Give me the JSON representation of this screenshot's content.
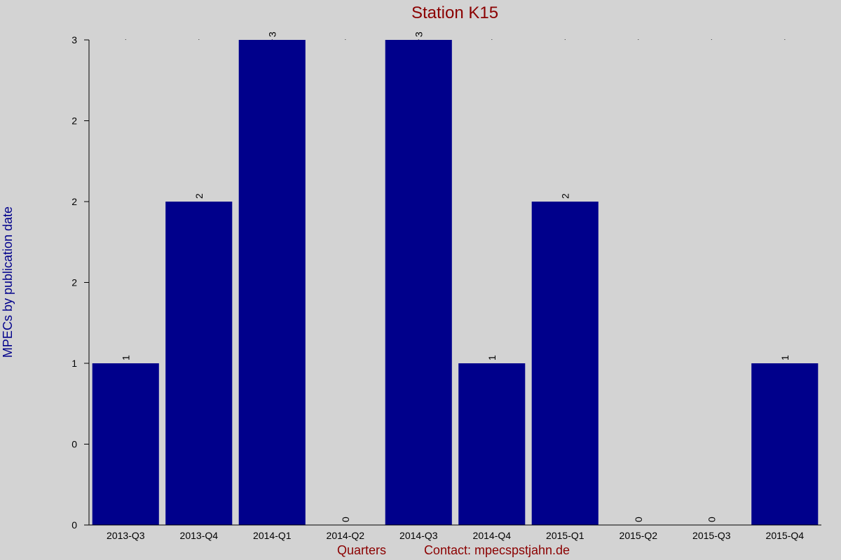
{
  "chart_data": {
    "type": "bar",
    "title": "Station K15",
    "xlabel": "Quarters",
    "ylabel": "MPECs by publication date",
    "contact": "Contact: mpecspstjahn.de",
    "categories": [
      "2013-Q3",
      "2013-Q4",
      "2014-Q1",
      "2014-Q2",
      "2014-Q3",
      "2014-Q4",
      "2015-Q1",
      "2015-Q2",
      "2015-Q3",
      "2015-Q4"
    ],
    "values": [
      1,
      2,
      3,
      0,
      3,
      1,
      2,
      0,
      0,
      1
    ],
    "data_labels": [
      "1",
      "2",
      "3",
      "0",
      "3",
      "1",
      "2",
      "0",
      "0",
      "1"
    ],
    "yticks": [
      {
        "value": 0,
        "label": "0"
      },
      {
        "value": 0.5,
        "label": "0"
      },
      {
        "value": 1,
        "label": "1"
      },
      {
        "value": 1.5,
        "label": "2"
      },
      {
        "value": 2,
        "label": "2"
      },
      {
        "value": 2.5,
        "label": "2"
      },
      {
        "value": 3,
        "label": "3"
      }
    ],
    "ylim": [
      0,
      3
    ],
    "grid": false,
    "legend": "none",
    "colors": {
      "background": "#d3d3d3",
      "bar": "#00008b",
      "title": "#8b0000",
      "ylabel": "#00008b",
      "footer": "#8b0000",
      "axis": "#000000"
    }
  }
}
